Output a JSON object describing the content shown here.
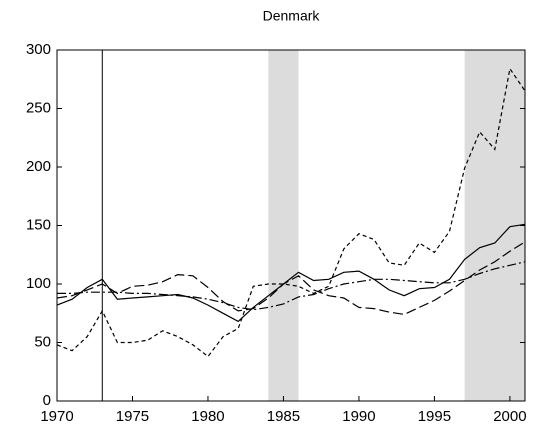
{
  "chart_data": {
    "type": "line",
    "title": "Denmark",
    "x": [
      1970,
      1971,
      1972,
      1973,
      1974,
      1975,
      1976,
      1977,
      1978,
      1979,
      1980,
      1981,
      1982,
      1983,
      1984,
      1985,
      1986,
      1987,
      1988,
      1989,
      1990,
      1991,
      1992,
      1993,
      1994,
      1995,
      1996,
      1997,
      1998,
      1999,
      2000,
      2001
    ],
    "series": [
      {
        "color": "#000000",
        "dash": "none",
        "values": [
          82,
          87,
          97,
          104,
          87,
          88,
          89,
          90,
          91,
          88,
          82,
          75,
          68,
          80,
          90,
          100,
          110,
          103,
          104,
          110,
          111,
          104,
          95,
          90,
          96,
          97,
          104,
          121,
          131,
          135,
          149,
          151
        ]
      },
      {
        "color": "#000000",
        "dash": "4,3",
        "values": [
          48,
          43,
          55,
          77,
          50,
          50,
          52,
          60,
          55,
          48,
          38,
          55,
          62,
          98,
          100,
          100,
          98,
          92,
          98,
          130,
          143,
          138,
          118,
          116,
          135,
          127,
          145,
          199,
          230,
          215,
          284,
          265
        ]
      },
      {
        "color": "#000000",
        "dash": "10,4",
        "values": [
          88,
          90,
          95,
          100,
          92,
          98,
          99,
          102,
          108,
          107,
          97,
          85,
          77,
          79,
          88,
          100,
          107,
          95,
          90,
          88,
          80,
          79,
          76,
          74,
          80,
          86,
          94,
          103,
          112,
          119,
          128,
          136
        ]
      },
      {
        "color": "#000000",
        "dash": "9,3,2,3",
        "values": [
          92,
          92,
          93,
          93,
          93,
          92,
          92,
          91,
          90,
          89,
          87,
          84,
          80,
          78,
          80,
          83,
          89,
          91,
          96,
          100,
          102,
          104,
          104,
          103,
          102,
          101,
          101,
          104,
          109,
          113,
          116,
          119
        ]
      }
    ],
    "shaded_periods": [
      [
        1984,
        1986
      ],
      [
        1997,
        2001
      ]
    ],
    "shade_color": "#dcdcdc",
    "vline": 1973,
    "xlim": [
      1970,
      2001
    ],
    "xticks": [
      1970,
      1975,
      1980,
      1985,
      1990,
      1995,
      2000
    ],
    "ylim": [
      0,
      300
    ],
    "yticks": [
      0,
      50,
      100,
      150,
      200,
      250,
      300
    ]
  }
}
